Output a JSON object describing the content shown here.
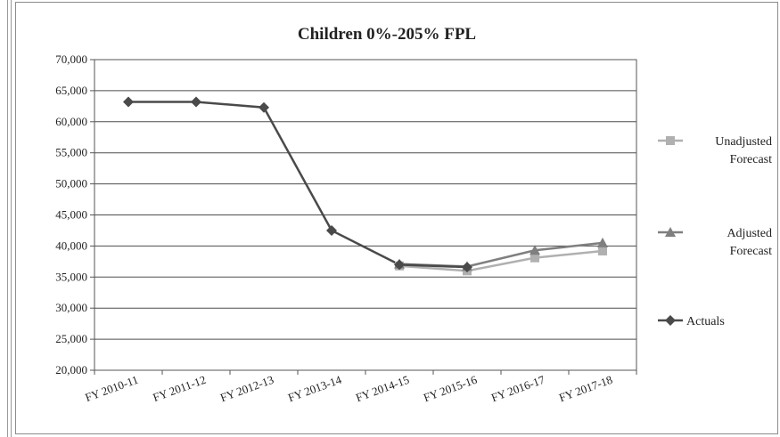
{
  "chart_data": {
    "type": "line",
    "title": "Children 0%-205% FPL",
    "xlabel": "",
    "ylabel": "",
    "categories": [
      "FY 2010-11",
      "FY 2011-12",
      "FY 2012-13",
      "FY 2013-14",
      "FY 2014-15",
      "FY 2015-16",
      "FY 2016-17",
      "FY 2017-18"
    ],
    "ylim": [
      20000,
      70000
    ],
    "yticks": [
      20000,
      25000,
      30000,
      35000,
      40000,
      45000,
      50000,
      55000,
      60000,
      65000,
      70000
    ],
    "ytick_labels": [
      "20,000",
      "25,000",
      "30,000",
      "35,000",
      "40,000",
      "45,000",
      "50,000",
      "55,000",
      "60,000",
      "65,000",
      "70,000"
    ],
    "grid": true,
    "legend_position": "right",
    "series": [
      {
        "name": "Unadjusted Forecast",
        "legend_lines": [
          "Unadjusted",
          "Forecast"
        ],
        "marker": "square",
        "color": "#b0b0b0",
        "values": [
          null,
          null,
          null,
          null,
          36800,
          36000,
          38100,
          39200
        ]
      },
      {
        "name": "Adjusted Forecast",
        "legend_lines": [
          "Adjusted",
          "Forecast"
        ],
        "marker": "triangle",
        "color": "#7f7f7f",
        "values": [
          null,
          null,
          null,
          null,
          37100,
          36700,
          39300,
          40500
        ]
      },
      {
        "name": "Actuals",
        "legend_lines": [
          "Actuals"
        ],
        "marker": "diamond",
        "color": "#4a4a4a",
        "values": [
          63200,
          63200,
          62300,
          42500,
          37000,
          36600,
          null,
          null
        ]
      }
    ]
  }
}
